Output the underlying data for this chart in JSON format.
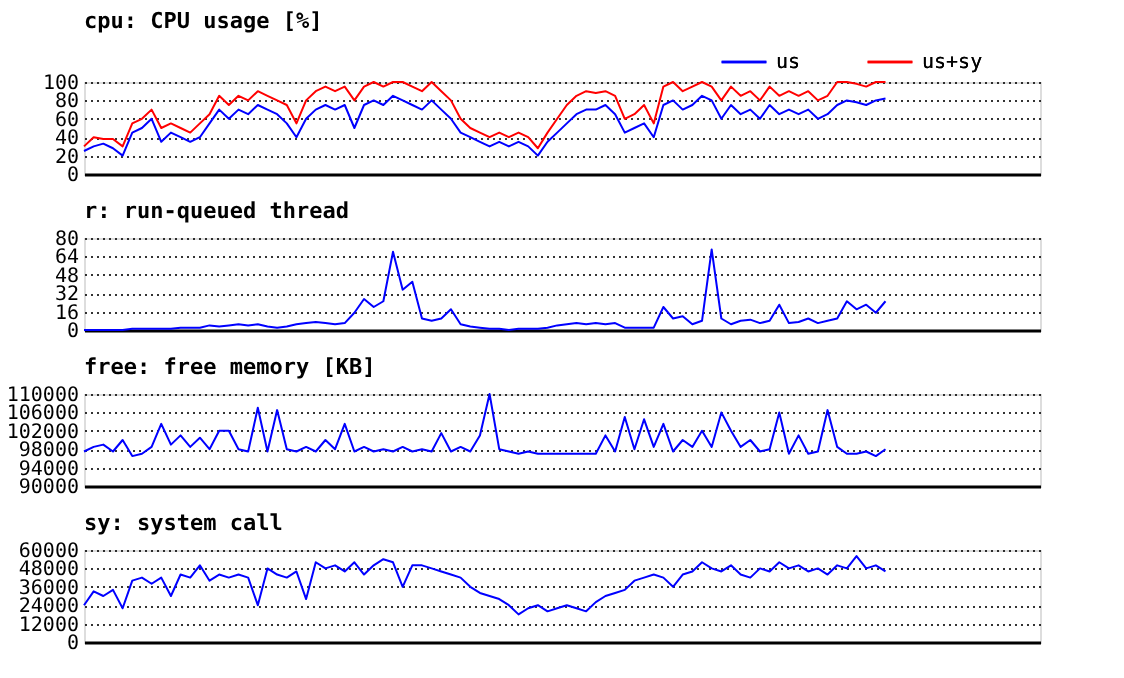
{
  "chart_data": [
    {
      "type": "line",
      "title": "cpu: CPU usage [%]",
      "categories": [
        null,
        null,
        null,
        null,
        null,
        null,
        null,
        null,
        null,
        null,
        null,
        null,
        null,
        null,
        null,
        null,
        null,
        null,
        null,
        null,
        null,
        null,
        null,
        null,
        null,
        null,
        null,
        null,
        null,
        null,
        null,
        null,
        null,
        null,
        null,
        null,
        null,
        null,
        null,
        null,
        null,
        null,
        null,
        null,
        null,
        null,
        null,
        null,
        null,
        null,
        null,
        null,
        null,
        null,
        null,
        null,
        null,
        null,
        null,
        null,
        null,
        null,
        null,
        null,
        null,
        null,
        null,
        null,
        null,
        null,
        null,
        null,
        null,
        null,
        null,
        null,
        null,
        null,
        null,
        null,
        null,
        null,
        null,
        null,
        null,
        null,
        null,
        null,
        null,
        null,
        null,
        null,
        null,
        null,
        null,
        null,
        null,
        null,
        null,
        null
      ],
      "ylim": [
        0,
        100
      ],
      "yticks": [
        0,
        20,
        40,
        60,
        80,
        100
      ],
      "grid": "y",
      "tick_labels": "y",
      "legend": "top right",
      "series": [
        {
          "name": "us",
          "color": "#0000ff",
          "values": [
            25,
            30,
            33,
            28,
            20,
            45,
            50,
            60,
            35,
            45,
            40,
            35,
            40,
            55,
            70,
            60,
            70,
            65,
            75,
            70,
            65,
            55,
            40,
            60,
            70,
            75,
            70,
            75,
            50,
            75,
            80,
            75,
            85,
            80,
            75,
            70,
            80,
            70,
            60,
            45,
            40,
            35,
            30,
            35,
            30,
            35,
            30,
            20,
            35,
            45,
            55,
            65,
            70,
            70,
            75,
            65,
            45,
            50,
            55,
            40,
            75,
            80,
            70,
            75,
            85,
            80,
            60,
            75,
            65,
            70,
            60,
            75,
            65,
            70,
            65,
            70,
            60,
            65,
            75,
            80,
            78,
            75,
            80,
            82,
            null,
            null,
            null,
            null,
            null,
            null,
            null,
            null,
            null,
            null,
            null,
            null,
            null,
            null,
            null,
            null
          ]
        },
        {
          "name": "us+sy",
          "color": "#ff0000",
          "values": [
            30,
            40,
            38,
            38,
            30,
            55,
            60,
            70,
            50,
            55,
            50,
            45,
            55,
            65,
            85,
            75,
            85,
            80,
            90,
            85,
            80,
            75,
            55,
            80,
            90,
            95,
            90,
            95,
            80,
            95,
            100,
            95,
            100,
            100,
            95,
            90,
            100,
            90,
            80,
            60,
            50,
            45,
            40,
            45,
            40,
            45,
            40,
            28,
            45,
            60,
            75,
            85,
            90,
            88,
            90,
            85,
            60,
            65,
            75,
            55,
            95,
            100,
            90,
            95,
            100,
            95,
            80,
            95,
            85,
            90,
            80,
            95,
            85,
            90,
            85,
            90,
            80,
            85,
            100,
            100,
            98,
            95,
            100,
            100,
            null,
            null,
            null,
            null,
            null,
            null,
            null,
            null,
            null,
            null,
            null,
            null,
            null,
            null,
            null,
            null
          ]
        }
      ]
    },
    {
      "type": "line",
      "title": "r: run-queued thread",
      "categories": [
        null,
        null,
        null,
        null,
        null,
        null,
        null,
        null,
        null,
        null,
        null,
        null,
        null,
        null,
        null,
        null,
        null,
        null,
        null,
        null,
        null,
        null,
        null,
        null,
        null,
        null,
        null,
        null,
        null,
        null,
        null,
        null,
        null,
        null,
        null,
        null,
        null,
        null,
        null,
        null,
        null,
        null,
        null,
        null,
        null,
        null,
        null,
        null,
        null,
        null,
        null,
        null,
        null,
        null,
        null,
        null,
        null,
        null,
        null,
        null,
        null,
        null,
        null,
        null,
        null,
        null,
        null,
        null,
        null,
        null,
        null,
        null,
        null,
        null,
        null,
        null,
        null,
        null,
        null,
        null,
        null,
        null,
        null,
        null,
        null,
        null,
        null,
        null,
        null,
        null,
        null,
        null,
        null,
        null,
        null,
        null,
        null,
        null,
        null,
        null
      ],
      "ylim": [
        0,
        80
      ],
      "yticks": [
        0,
        16,
        32,
        48,
        64,
        80
      ],
      "grid": "y",
      "tick_labels": "y",
      "series": [
        {
          "color": "#0000ff",
          "values": [
            0,
            0,
            0,
            0,
            0,
            1,
            1,
            1,
            1,
            1,
            2,
            2,
            2,
            4,
            3,
            4,
            5,
            4,
            5,
            3,
            2,
            3,
            5,
            6,
            7,
            6,
            5,
            6,
            15,
            27,
            20,
            25,
            68,
            35,
            42,
            10,
            8,
            10,
            18,
            5,
            3,
            2,
            1,
            1,
            0,
            1,
            1,
            1,
            2,
            4,
            5,
            6,
            5,
            6,
            5,
            6,
            2,
            2,
            2,
            2,
            20,
            10,
            12,
            5,
            8,
            70,
            10,
            5,
            8,
            9,
            6,
            8,
            22,
            6,
            7,
            10,
            6,
            8,
            10,
            25,
            18,
            22,
            15,
            25,
            null,
            null,
            null,
            null,
            null,
            null,
            null,
            null,
            null,
            null,
            null,
            null,
            null,
            null,
            null,
            null
          ]
        }
      ]
    },
    {
      "type": "line",
      "title": "free: free memory [KB]",
      "categories": [
        null,
        null,
        null,
        null,
        null,
        null,
        null,
        null,
        null,
        null,
        null,
        null,
        null,
        null,
        null,
        null,
        null,
        null,
        null,
        null,
        null,
        null,
        null,
        null,
        null,
        null,
        null,
        null,
        null,
        null,
        null,
        null,
        null,
        null,
        null,
        null,
        null,
        null,
        null,
        null,
        null,
        null,
        null,
        null,
        null,
        null,
        null,
        null,
        null,
        null,
        null,
        null,
        null,
        null,
        null,
        null,
        null,
        null,
        null,
        null,
        null,
        null,
        null,
        null,
        null,
        null,
        null,
        null,
        null,
        null,
        null,
        null,
        null,
        null,
        null,
        null,
        null,
        null,
        null,
        null,
        null,
        null,
        null,
        null,
        null,
        null,
        null,
        null,
        null,
        null,
        null,
        null,
        null,
        null,
        null,
        null,
        null,
        null,
        null,
        null
      ],
      "ylim": [
        90000,
        110000
      ],
      "yticks": [
        90000,
        94000,
        98000,
        102000,
        106000,
        110000
      ],
      "grid": "y",
      "tick_labels": "y",
      "series": [
        {
          "color": "#0000ff",
          "values": [
            97500,
            98500,
            99000,
            97500,
            100000,
            96500,
            97000,
            98500,
            103500,
            99000,
            101000,
            98500,
            100500,
            98000,
            102000,
            102000,
            98000,
            97500,
            107000,
            97500,
            106500,
            98000,
            97500,
            98500,
            97500,
            100000,
            98000,
            103500,
            97500,
            98500,
            97500,
            98000,
            97500,
            98500,
            97500,
            98000,
            97500,
            101500,
            97500,
            98500,
            97500,
            101000,
            110000,
            98000,
            97500,
            97000,
            97500,
            97000,
            97000,
            97000,
            97000,
            97000,
            97000,
            97000,
            101000,
            97500,
            105000,
            98000,
            104500,
            98500,
            103500,
            97500,
            100000,
            98500,
            102000,
            98500,
            106000,
            102000,
            98500,
            100000,
            97500,
            98000,
            106000,
            97000,
            101000,
            97000,
            97500,
            106500,
            98500,
            97000,
            97000,
            97500,
            96500,
            98000,
            null,
            null,
            null,
            null,
            null,
            null,
            null,
            null,
            null,
            null,
            null,
            null,
            null,
            null,
            null,
            null
          ]
        }
      ]
    },
    {
      "type": "line",
      "title": "sy: system call",
      "categories": [
        null,
        null,
        null,
        null,
        null,
        null,
        null,
        null,
        null,
        null,
        null,
        null,
        null,
        null,
        null,
        null,
        null,
        null,
        null,
        null,
        null,
        null,
        null,
        null,
        null,
        null,
        null,
        null,
        null,
        null,
        null,
        null,
        null,
        null,
        null,
        null,
        null,
        null,
        null,
        null,
        null,
        null,
        null,
        null,
        null,
        null,
        null,
        null,
        null,
        null,
        null,
        null,
        null,
        null,
        null,
        null,
        null,
        null,
        null,
        null,
        null,
        null,
        null,
        null,
        null,
        null,
        null,
        null,
        null,
        null,
        null,
        null,
        null,
        null,
        null,
        null,
        null,
        null,
        null,
        null,
        null,
        null,
        null,
        null,
        null,
        null,
        null,
        null,
        null,
        null,
        null,
        null,
        null,
        null,
        null,
        null,
        null,
        null,
        null,
        null
      ],
      "ylim": [
        0,
        60000
      ],
      "yticks": [
        0,
        12000,
        24000,
        36000,
        48000,
        60000
      ],
      "grid": "y",
      "tick_labels": "y",
      "series": [
        {
          "color": "#0000ff",
          "values": [
            24000,
            33000,
            30000,
            34000,
            22000,
            40000,
            42000,
            38000,
            42000,
            30000,
            44000,
            42000,
            50000,
            40000,
            44000,
            42000,
            44000,
            42000,
            24000,
            48000,
            44000,
            42000,
            46000,
            28000,
            52000,
            48000,
            50000,
            46000,
            52000,
            44000,
            50000,
            54000,
            52000,
            36000,
            50000,
            50000,
            48000,
            46000,
            44000,
            42000,
            36000,
            32000,
            30000,
            28000,
            24000,
            18000,
            22000,
            24000,
            20000,
            22000,
            24000,
            22000,
            20000,
            26000,
            30000,
            32000,
            34000,
            40000,
            42000,
            44000,
            42000,
            36000,
            44000,
            46000,
            52000,
            48000,
            46000,
            50000,
            44000,
            42000,
            48000,
            46000,
            52000,
            48000,
            50000,
            46000,
            48000,
            44000,
            50000,
            48000,
            56000,
            48000,
            50000,
            46000,
            null,
            null,
            null,
            null,
            null,
            null,
            null,
            null,
            null,
            null,
            null,
            null,
            null,
            null,
            null,
            null
          ]
        }
      ]
    }
  ]
}
